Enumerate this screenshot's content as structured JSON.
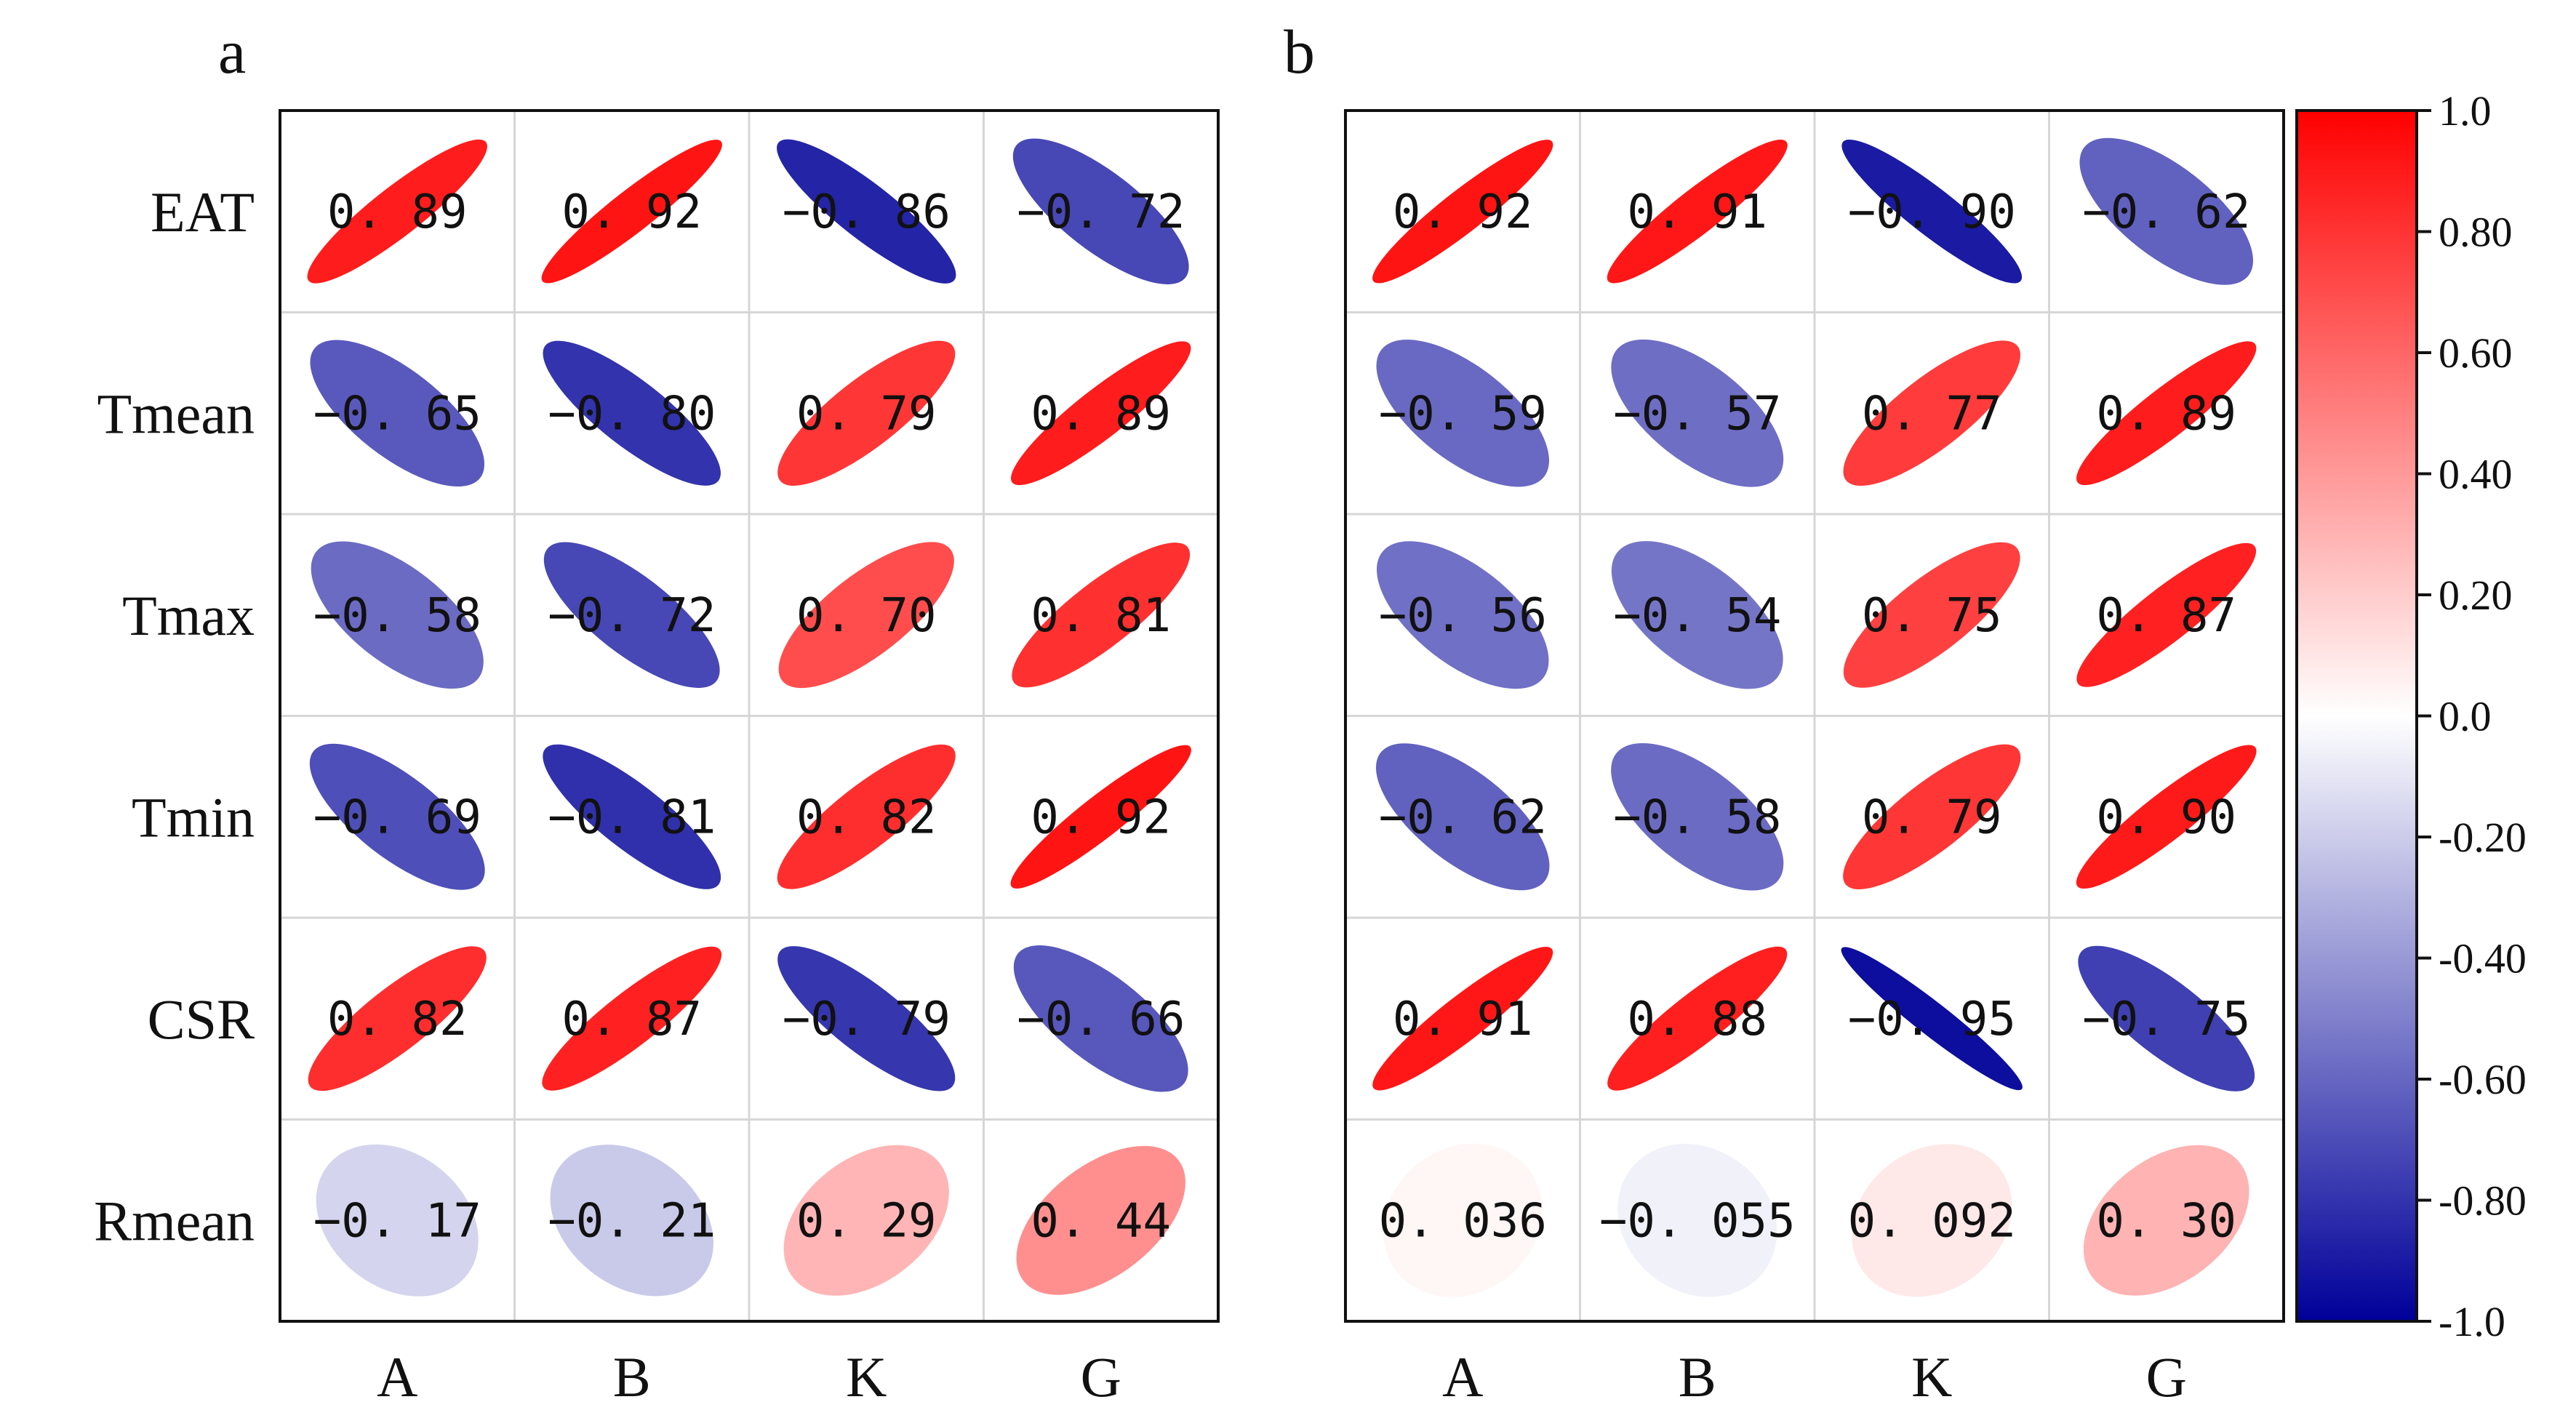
{
  "chart_data": [
    {
      "type": "heatmap",
      "panel": "a",
      "rows": [
        "EAT",
        "Tmean",
        "Tmax",
        "Tmin",
        "CSR",
        "Rmean"
      ],
      "columns": [
        "A",
        "B",
        "K",
        "G"
      ],
      "values": [
        [
          0.89,
          0.92,
          -0.86,
          -0.72
        ],
        [
          -0.65,
          -0.8,
          0.79,
          0.89
        ],
        [
          -0.58,
          -0.72,
          0.7,
          0.81
        ],
        [
          -0.69,
          -0.81,
          0.82,
          0.92
        ],
        [
          0.82,
          0.87,
          -0.79,
          -0.66
        ],
        [
          -0.17,
          -0.21,
          0.29,
          0.44
        ]
      ],
      "value_labels": [
        [
          "0. 89",
          "0. 92",
          "−0. 86",
          "−0. 72"
        ],
        [
          "−0. 65",
          "−0. 80",
          "0. 79",
          "0. 89"
        ],
        [
          "−0. 58",
          "−0. 72",
          "0. 70",
          "0. 81"
        ],
        [
          "−0. 69",
          "−0. 81",
          "0. 82",
          "0. 92"
        ],
        [
          "0. 82",
          "0. 87",
          "−0. 79",
          "−0. 66"
        ],
        [
          "−0. 17",
          "−0. 21",
          "0. 29",
          "0. 44"
        ]
      ]
    },
    {
      "type": "heatmap",
      "panel": "b",
      "rows": [
        "EAT",
        "Tmean",
        "Tmax",
        "Tmin",
        "CSR",
        "Rmean"
      ],
      "columns": [
        "A",
        "B",
        "K",
        "G"
      ],
      "values": [
        [
          0.92,
          0.91,
          -0.9,
          -0.62
        ],
        [
          -0.59,
          -0.57,
          0.77,
          0.89
        ],
        [
          -0.56,
          -0.54,
          0.75,
          0.87
        ],
        [
          -0.62,
          -0.58,
          0.79,
          0.9
        ],
        [
          0.91,
          0.88,
          -0.95,
          -0.75
        ],
        [
          0.036,
          -0.055,
          0.092,
          0.3
        ]
      ],
      "value_labels": [
        [
          "0. 92",
          "0. 91",
          "−0. 90",
          "−0. 62"
        ],
        [
          "−0. 59",
          "−0. 57",
          "0. 77",
          "0. 89"
        ],
        [
          "−0. 56",
          "−0. 54",
          "0. 75",
          "0. 87"
        ],
        [
          "−0. 62",
          "−0. 58",
          "0. 79",
          "0. 90"
        ],
        [
          "0. 91",
          "0. 88",
          "−0. 95",
          "−0. 75"
        ],
        [
          "0. 036",
          "−0. 055",
          "0. 092",
          "0. 30"
        ]
      ]
    }
  ],
  "colorbar": {
    "range": [
      -1.0,
      1.0
    ],
    "ticks": [
      {
        "value": 1.0,
        "label": "1.0"
      },
      {
        "value": 0.8,
        "label": "0.80"
      },
      {
        "value": 0.6,
        "label": "0.60"
      },
      {
        "value": 0.4,
        "label": "0.40"
      },
      {
        "value": 0.2,
        "label": "0.20"
      },
      {
        "value": 0.0,
        "label": "0.0"
      },
      {
        "value": -0.2,
        "label": "-0.20"
      },
      {
        "value": -0.4,
        "label": "-0.40"
      },
      {
        "value": -0.6,
        "label": "-0.60"
      },
      {
        "value": -0.8,
        "label": "-0.80"
      },
      {
        "value": -1.0,
        "label": "-1.0"
      }
    ],
    "colors": {
      "negative": "#000099",
      "zero": "#ffffff",
      "positive": "#ff0000"
    }
  },
  "grid": true
}
